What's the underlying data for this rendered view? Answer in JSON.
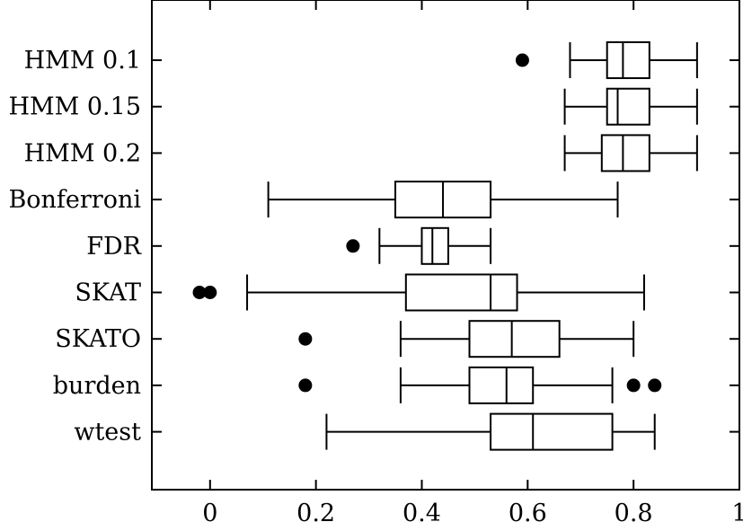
{
  "chart_data": {
    "type": "boxplot",
    "orientation": "horizontal",
    "title": "",
    "xlabel": "",
    "ylabel": "",
    "xlim": [
      -0.11,
      1.0
    ],
    "xticks": [
      0,
      0.2,
      0.4,
      0.6,
      0.8,
      1
    ],
    "xtick_labels": [
      "0",
      "0.2",
      "0.4",
      "0.6",
      "0.8",
      "1"
    ],
    "grid": false,
    "categories": [
      "HMM 0.1",
      "HMM 0.15",
      "HMM 0.2",
      "Bonferroni",
      "FDR",
      "SKAT",
      "SKATO",
      "burden",
      "wtest"
    ],
    "boxes": [
      {
        "label": "HMM 0.1",
        "whislo": 0.68,
        "q1": 0.75,
        "med": 0.78,
        "q3": 0.83,
        "whishi": 0.92,
        "fliers": [
          0.59
        ]
      },
      {
        "label": "HMM 0.15",
        "whislo": 0.67,
        "q1": 0.75,
        "med": 0.77,
        "q3": 0.83,
        "whishi": 0.92,
        "fliers": []
      },
      {
        "label": "HMM 0.2",
        "whislo": 0.67,
        "q1": 0.74,
        "med": 0.78,
        "q3": 0.83,
        "whishi": 0.92,
        "fliers": []
      },
      {
        "label": "Bonferroni",
        "whislo": 0.11,
        "q1": 0.35,
        "med": 0.44,
        "q3": 0.53,
        "whishi": 0.77,
        "fliers": []
      },
      {
        "label": "FDR",
        "whislo": 0.32,
        "q1": 0.4,
        "med": 0.42,
        "q3": 0.45,
        "whishi": 0.53,
        "fliers": [
          0.27
        ]
      },
      {
        "label": "SKAT",
        "whislo": 0.07,
        "q1": 0.37,
        "med": 0.53,
        "q3": 0.58,
        "whishi": 0.82,
        "fliers": [
          -0.02,
          0.0
        ]
      },
      {
        "label": "SKATO",
        "whislo": 0.36,
        "q1": 0.49,
        "med": 0.57,
        "q3": 0.66,
        "whishi": 0.8,
        "fliers": [
          0.18
        ]
      },
      {
        "label": "burden",
        "whislo": 0.36,
        "q1": 0.49,
        "med": 0.56,
        "q3": 0.61,
        "whishi": 0.76,
        "fliers": [
          0.18,
          0.8,
          0.84
        ]
      },
      {
        "label": "wtest",
        "whislo": 0.22,
        "q1": 0.53,
        "med": 0.61,
        "q3": 0.76,
        "whishi": 0.84,
        "fliers": []
      }
    ]
  }
}
